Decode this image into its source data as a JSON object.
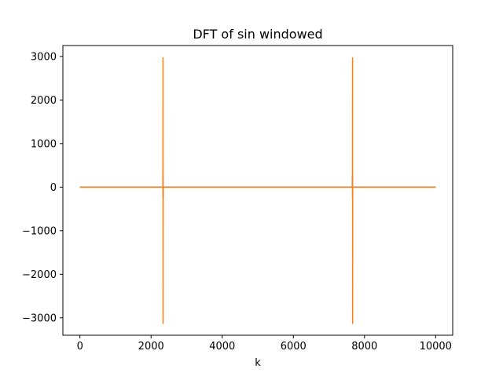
{
  "chart_data": {
    "type": "line",
    "title": "DFT of sin windowed",
    "xlabel": "k",
    "ylabel": "",
    "xlim": [
      -480,
      10480
    ],
    "ylim": [
      -3400,
      3250
    ],
    "xticks": [
      0,
      2000,
      4000,
      6000,
      8000,
      10000
    ],
    "yticks": [
      -3000,
      -2000,
      -1000,
      0,
      1000,
      2000,
      3000
    ],
    "grid": false,
    "legend": "none",
    "series": [
      {
        "color": "#1f77b4",
        "x": [
          0,
          2331,
          2335,
          2338,
          2342,
          7658,
          7662,
          7665,
          7669,
          10000
        ],
        "y": [
          0,
          0,
          250,
          -250,
          0,
          0,
          250,
          -250,
          0,
          0
        ]
      },
      {
        "color": "#ff7f0e",
        "x": [
          0,
          2332,
          2334,
          2336,
          2338,
          2340,
          7660,
          7662,
          7664,
          7666,
          7668,
          10000
        ],
        "y": [
          0,
          0,
          650,
          2970,
          -3130,
          0,
          0,
          650,
          2970,
          -3130,
          0,
          0
        ]
      }
    ]
  }
}
